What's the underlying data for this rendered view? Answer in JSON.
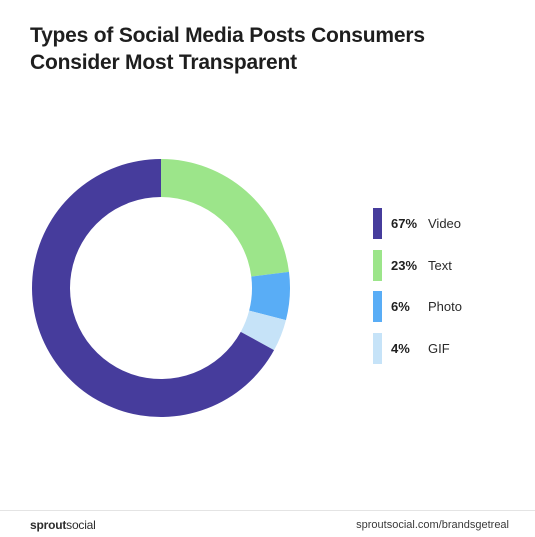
{
  "title": "Types of Social Media Posts Consumers Consider Most Transparent",
  "chart_data": {
    "type": "pie",
    "title": "Types of Social Media Posts Consumers Consider Most Transparent",
    "slices": [
      {
        "label": "Video",
        "value": 67,
        "display": "67%",
        "color": "#463c9c"
      },
      {
        "label": "Text",
        "value": 23,
        "display": "23%",
        "color": "#9ce58a"
      },
      {
        "label": "Photo",
        "value": 6,
        "display": "6%",
        "color": "#59adf6"
      },
      {
        "label": "GIF",
        "value": 4,
        "display": "4%",
        "color": "#c6e3f8"
      }
    ],
    "unit": "%",
    "donut": true,
    "legend": "right"
  },
  "footer": {
    "brand_bold": "sprout",
    "brand_light": "social",
    "url": "sproutsocial.com/brandsgetreal"
  }
}
